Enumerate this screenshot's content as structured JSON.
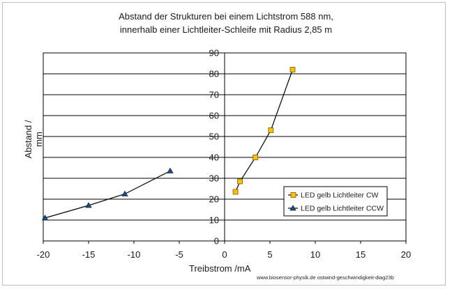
{
  "chart_data": {
    "type": "scatter",
    "title": "Abstand der Strukturen bei einem Lichtstrom 588 nm,",
    "subtitle": "innerhalb einer Lichtleiter-Schleife mit Radius 2,85 m",
    "xlabel": "Treibstrom /mA",
    "ylabel": "Abstand / mm",
    "xlim": [
      -20,
      20
    ],
    "ylim": [
      0,
      90
    ],
    "xticks": [
      -20,
      -15,
      -10,
      -5,
      0,
      5,
      10,
      15,
      20
    ],
    "yticks": [
      0,
      10,
      20,
      30,
      40,
      50,
      60,
      70,
      80,
      90
    ],
    "grid": "horizontal",
    "legend_position": "bottom-right",
    "series": [
      {
        "name": "LED gelb Lichtleiter CW",
        "marker": "square",
        "color": "#ffc000",
        "line_color": "#000000",
        "x": [
          1.2,
          1.7,
          3.4,
          5.1,
          7.5
        ],
        "y": [
          23.5,
          28.5,
          40,
          53,
          82
        ]
      },
      {
        "name": "LED gelb Lichtleiter CCW",
        "marker": "triangle",
        "color": "#1f4e79",
        "line_color": "#000000",
        "x": [
          -19.8,
          -15,
          -11,
          -6
        ],
        "y": [
          11,
          17,
          22.5,
          33.5
        ]
      }
    ]
  },
  "credit": "www.biosensor-physik.de  ostwind-geschwindigkeit-diag23b"
}
